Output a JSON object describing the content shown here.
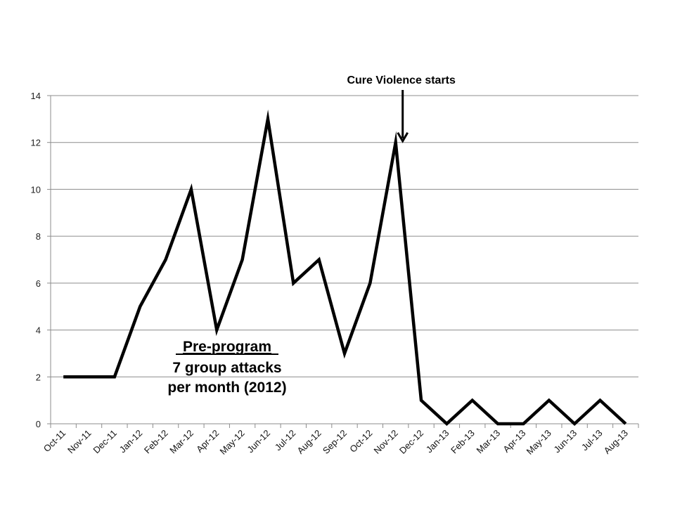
{
  "chart_data": {
    "type": "line",
    "categories": [
      "Oct-11",
      "Nov-11",
      "Dec-11",
      "Jan-12",
      "Feb-12",
      "Mar-12",
      "Apr-12",
      "May-12",
      "Jun-12",
      "Jul-12",
      "Aug-12",
      "Sep-12",
      "Oct-12",
      "Nov-12",
      "Dec-12",
      "Jan-13",
      "Feb-13",
      "Mar-13",
      "Apr-13",
      "May-13",
      "Jun-13",
      "Jul-13",
      "Aug-13"
    ],
    "series": [
      {
        "values": [
          2,
          2,
          2,
          5,
          7,
          10,
          4,
          7,
          13,
          6,
          7,
          3,
          6,
          12,
          1,
          0,
          1,
          0,
          0,
          1,
          0,
          1,
          0
        ]
      }
    ],
    "ylim": [
      0,
      14
    ],
    "yticks": [
      0,
      2,
      4,
      6,
      8,
      10,
      12,
      14
    ],
    "grid": true,
    "line_color": "#000000",
    "annotations": {
      "event": {
        "text": "Cure Violence starts",
        "category": "Nov-12"
      },
      "pre_program": {
        "line1": "Pre-program",
        "line2": "7 group attacks",
        "line3": "per month (2012)"
      }
    }
  }
}
